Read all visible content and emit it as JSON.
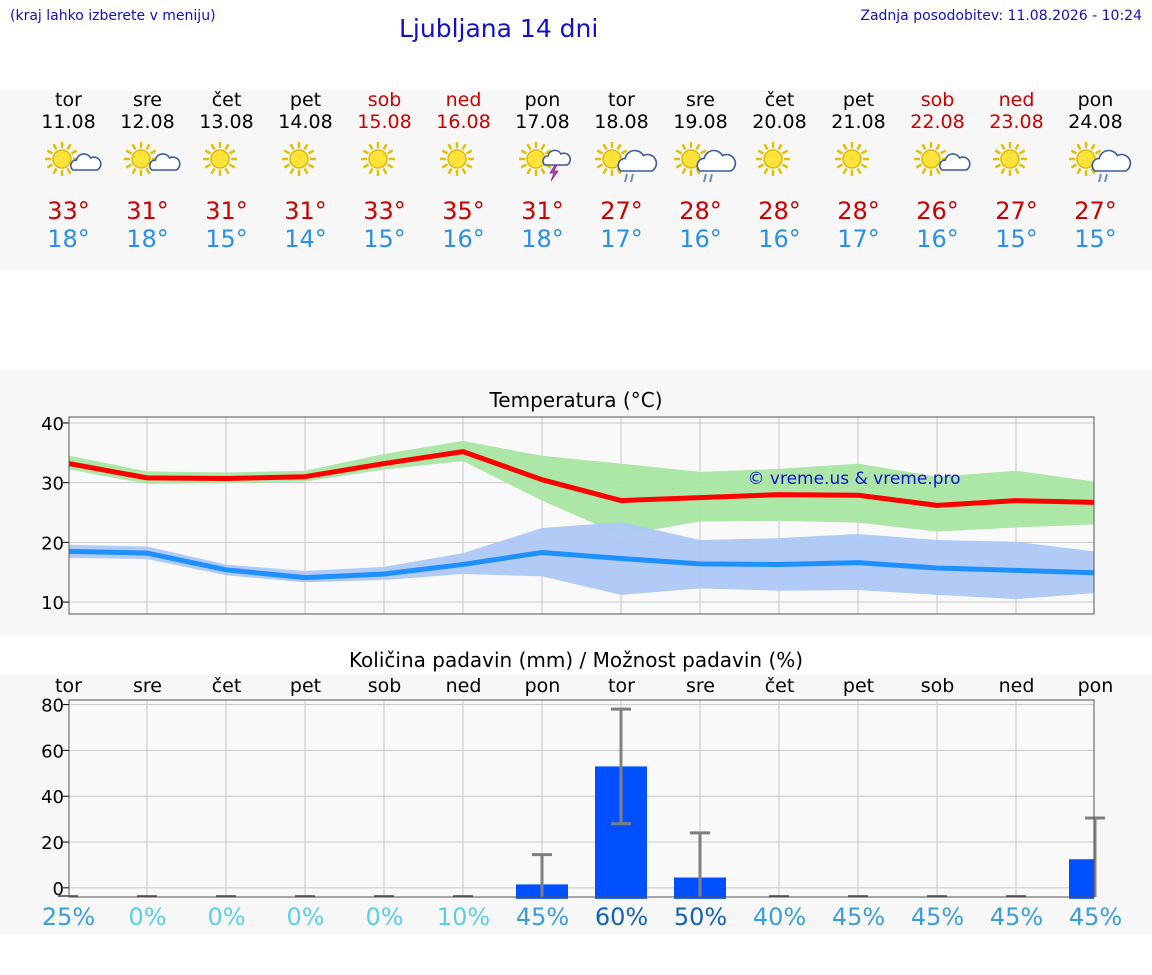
{
  "header": {
    "left_note": "(kraj lahko izberete v meniju)",
    "title": "Ljubljana 14 dni",
    "updated": "Zadnja posodobitev: 11.08.2026 - 10:24"
  },
  "days": [
    {
      "name": "tor",
      "date": "11.08",
      "weekend": false,
      "icon": "sun-cloud-icon",
      "tmax": "33°",
      "tmin": "18°"
    },
    {
      "name": "sre",
      "date": "12.08",
      "weekend": false,
      "icon": "sun-cloud-icon",
      "tmax": "31°",
      "tmin": "18°"
    },
    {
      "name": "čet",
      "date": "13.08",
      "weekend": false,
      "icon": "sun-icon",
      "tmax": "31°",
      "tmin": "15°"
    },
    {
      "name": "pet",
      "date": "14.08",
      "weekend": false,
      "icon": "sun-icon",
      "tmax": "31°",
      "tmin": "14°"
    },
    {
      "name": "sob",
      "date": "15.08",
      "weekend": true,
      "icon": "sun-icon",
      "tmax": "33°",
      "tmin": "15°"
    },
    {
      "name": "ned",
      "date": "16.08",
      "weekend": true,
      "icon": "sun-icon",
      "tmax": "35°",
      "tmin": "16°"
    },
    {
      "name": "pon",
      "date": "17.08",
      "weekend": false,
      "icon": "sun-storm-icon",
      "tmax": "31°",
      "tmin": "18°"
    },
    {
      "name": "tor",
      "date": "18.08",
      "weekend": false,
      "icon": "sun-rain-icon",
      "tmax": "27°",
      "tmin": "17°"
    },
    {
      "name": "sre",
      "date": "19.08",
      "weekend": false,
      "icon": "sun-rain-icon",
      "tmax": "28°",
      "tmin": "16°"
    },
    {
      "name": "čet",
      "date": "20.08",
      "weekend": false,
      "icon": "sun-icon",
      "tmax": "28°",
      "tmin": "16°"
    },
    {
      "name": "pet",
      "date": "21.08",
      "weekend": false,
      "icon": "sun-icon",
      "tmax": "28°",
      "tmin": "17°"
    },
    {
      "name": "sob",
      "date": "22.08",
      "weekend": true,
      "icon": "sun-cloud-icon",
      "tmax": "26°",
      "tmin": "16°"
    },
    {
      "name": "ned",
      "date": "23.08",
      "weekend": true,
      "icon": "sun-icon",
      "tmax": "27°",
      "tmin": "15°"
    },
    {
      "name": "pon",
      "date": "24.08",
      "weekend": false,
      "icon": "sun-rain-icon",
      "tmax": "27°",
      "tmin": "15°"
    }
  ],
  "colors": {
    "tmax_text": "#cc0000",
    "tmin_text": "#2b8fe6",
    "tmax_line": "#ff0000",
    "tmax_band": "#a8e6a3",
    "tmin_line": "#1e90ff",
    "tmin_band": "#adc8f5",
    "rain_bar": "#0050ff",
    "error_bar": "#808080"
  },
  "chart_data": [
    {
      "type": "line",
      "title": "Temperatura (°C)",
      "watermark": "© vreme.us & vreme.pro",
      "x": [
        "11.08",
        "12.08",
        "13.08",
        "14.08",
        "15.08",
        "16.08",
        "17.08",
        "18.08",
        "19.08",
        "20.08",
        "21.08",
        "22.08",
        "23.08",
        "24.08"
      ],
      "ylim": [
        8,
        41
      ],
      "yticks": [
        10,
        20,
        30,
        40
      ],
      "grid": true,
      "series": [
        {
          "key": "tmax",
          "values": [
            33.2,
            30.8,
            30.7,
            31.0,
            33.2,
            35.2,
            30.5,
            27.0,
            27.5,
            28.0,
            27.9,
            26.2,
            27.0,
            26.7
          ],
          "band_low": [
            32.2,
            29.8,
            29.9,
            30.2,
            32.2,
            33.6,
            27.0,
            21.2,
            23.5,
            23.6,
            23.3,
            21.8,
            22.5,
            23.0
          ],
          "band_high": [
            34.5,
            31.9,
            31.7,
            32.0,
            34.8,
            37.0,
            34.5,
            33.2,
            31.8,
            32.3,
            33.2,
            31.0,
            32.0,
            30.2
          ]
        },
        {
          "key": "tmin",
          "values": [
            18.5,
            18.2,
            15.4,
            14.1,
            14.7,
            16.3,
            18.3,
            17.3,
            16.4,
            16.3,
            16.6,
            15.7,
            15.3,
            14.9
          ],
          "band_low": [
            17.4,
            17.2,
            14.5,
            13.3,
            13.7,
            14.7,
            14.3,
            11.2,
            12.3,
            11.9,
            12.0,
            11.2,
            10.5,
            11.5
          ],
          "band_high": [
            19.6,
            19.3,
            16.3,
            15.2,
            15.9,
            18.2,
            22.4,
            23.4,
            20.4,
            20.7,
            21.4,
            20.4,
            20.1,
            18.5
          ]
        }
      ]
    },
    {
      "type": "bar",
      "title": "Količina padavin (mm) / Možnost padavin (%)",
      "categories": [
        "tor",
        "sre",
        "čet",
        "pet",
        "sob",
        "ned",
        "pon",
        "tor",
        "sre",
        "čet",
        "pet",
        "sob",
        "ned",
        "pon"
      ],
      "ylim": [
        -4,
        82
      ],
      "yticks": [
        0,
        20,
        40,
        60,
        80
      ],
      "grid": true,
      "values": [
        0,
        0,
        0,
        0,
        0,
        0,
        1.5,
        53,
        4.5,
        0,
        0,
        0,
        0,
        12.5
      ],
      "error_low": [
        null,
        null,
        null,
        null,
        null,
        null,
        0,
        28,
        0,
        null,
        null,
        null,
        null,
        0
      ],
      "error_high": [
        null,
        null,
        null,
        null,
        null,
        null,
        14.5,
        78,
        24,
        null,
        null,
        null,
        null,
        30.5
      ],
      "probability": [
        "25%",
        "0%",
        "0%",
        "0%",
        "0%",
        "10%",
        "45%",
        "60%",
        "50%",
        "40%",
        "45%",
        "45%",
        "45%",
        "45%"
      ],
      "probability_colors": [
        "#3a9fd8",
        "#5bcfe8",
        "#5bcfe8",
        "#5bcfe8",
        "#5bcfe8",
        "#5bcfe8",
        "#3a9fd8",
        "#1262b8",
        "#1262b8",
        "#3a9fd8",
        "#3a9fd8",
        "#3a9fd8",
        "#3a9fd8",
        "#3a9fd8"
      ]
    }
  ]
}
